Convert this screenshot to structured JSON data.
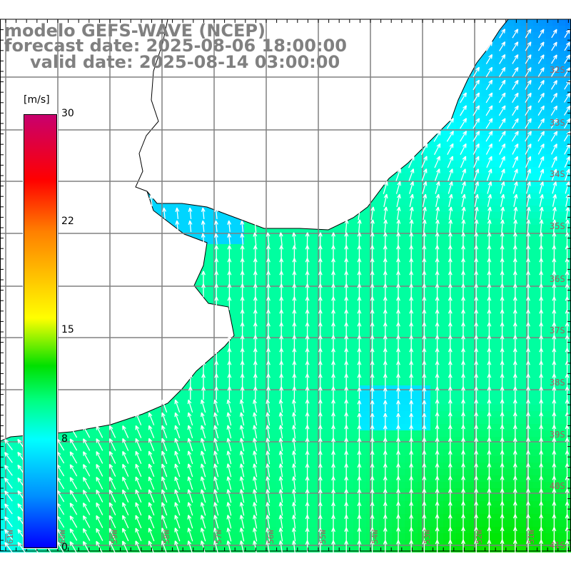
{
  "title": {
    "line1": "modelo GEFS-WAVE (NCEP)",
    "line2": "forecast date: 2025-08-06 18:00:00",
    "line3": "valid date: 2025-08-14 03:00:00"
  },
  "colorbar": {
    "unit": "[m/s]",
    "ticks": [
      "30",
      "22",
      "15",
      "8",
      "0"
    ]
  },
  "axes": {
    "lon_labels": [
      "61W",
      "60W",
      "59W",
      "58W",
      "57W",
      "56W",
      "55W",
      "54W",
      "53W",
      "52W",
      "51W"
    ],
    "lat_labels": [
      "32S",
      "33S",
      "34S",
      "35S",
      "36S",
      "37S",
      "38S",
      "39S",
      "40S",
      "41S"
    ]
  }
}
